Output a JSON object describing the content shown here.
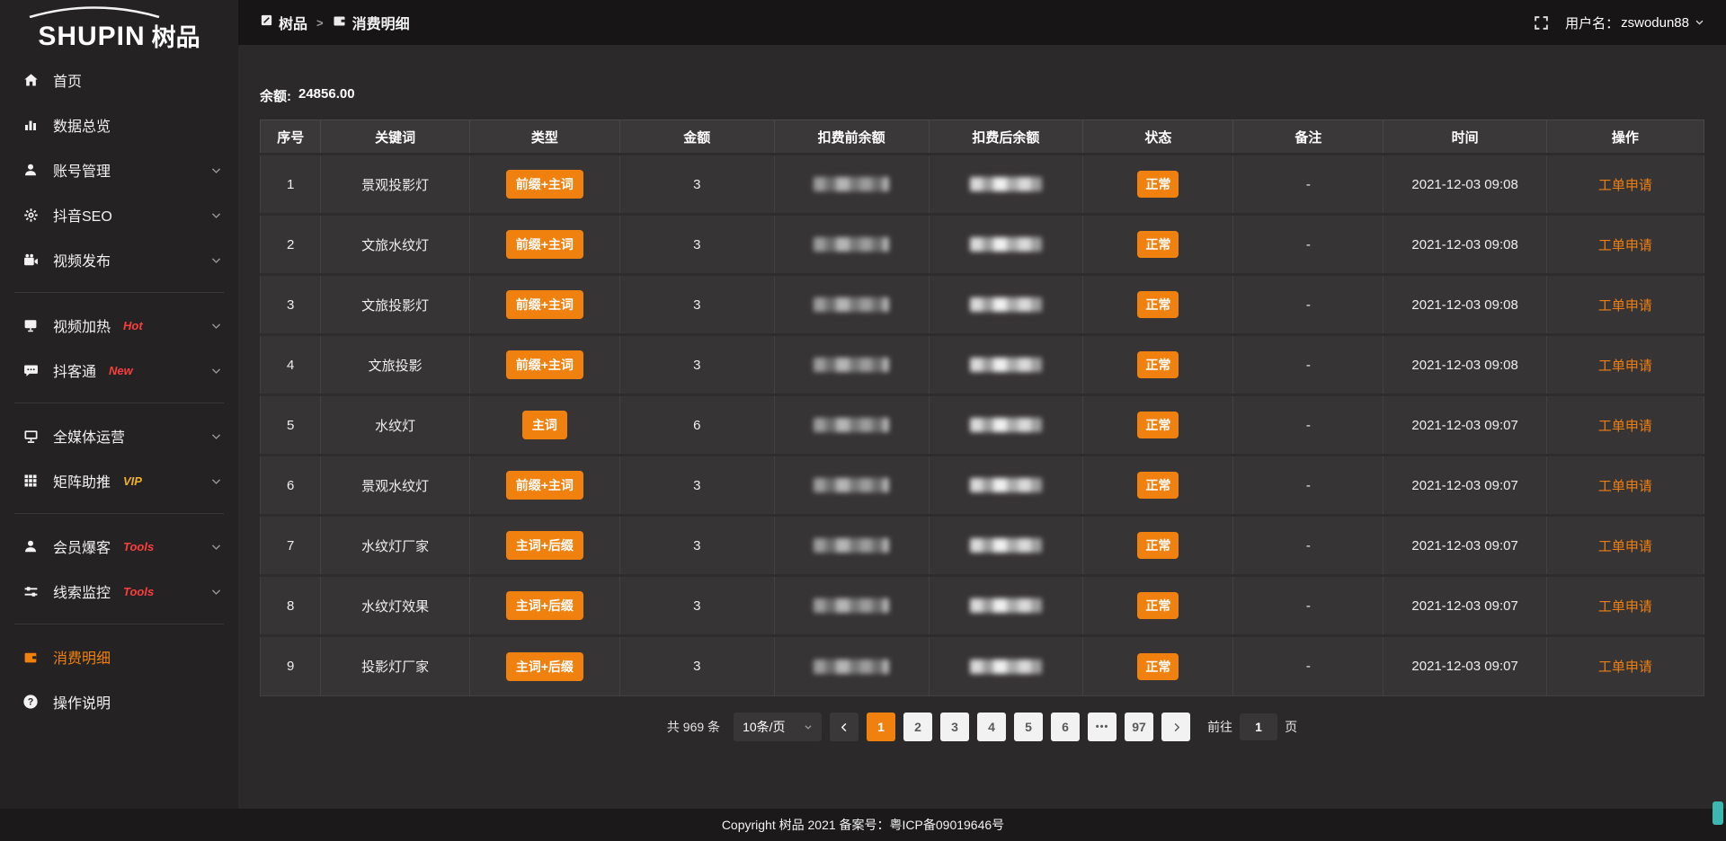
{
  "logo": {
    "text_en": "SHUPIN",
    "text_cn": "树品"
  },
  "topbar": {
    "breadcrumb": [
      {
        "label": "树品",
        "icon": "app-square-icon"
      },
      {
        "label": "消费明细",
        "icon": "wallet-icon"
      }
    ],
    "breadcrumb_separator": ">",
    "username_label": "用户名：",
    "username": "zswodun88"
  },
  "sidebar": {
    "items": [
      {
        "key": "home",
        "label": "首页",
        "icon": "home-icon"
      },
      {
        "key": "data-overview",
        "label": "数据总览",
        "icon": "bar-chart-icon"
      },
      {
        "key": "account-manage",
        "label": "账号管理",
        "icon": "user-icon",
        "chevron": true
      },
      {
        "key": "douyin-seo",
        "label": "抖音SEO",
        "icon": "gear-icon",
        "chevron": true
      },
      {
        "key": "video-publish",
        "label": "视频发布",
        "icon": "camera-icon",
        "chevron": true
      },
      {
        "divider": true
      },
      {
        "key": "video-heat",
        "label": "视频加热",
        "icon": "video-icon",
        "tag": "Hot",
        "tag_color": "#fa3e3e",
        "chevron": true
      },
      {
        "key": "douketong",
        "label": "抖客通",
        "icon": "chat-icon",
        "tag": "New",
        "tag_color": "#fa3e3e",
        "chevron": true
      },
      {
        "divider": true
      },
      {
        "key": "media-operation",
        "label": "全媒体运营",
        "icon": "monitor-icon",
        "chevron": true
      },
      {
        "key": "matrix-boost",
        "label": "矩阵助推",
        "icon": "grid-icon",
        "tag": "VIP",
        "tag_color": "#efb129",
        "chevron": true
      },
      {
        "divider": true
      },
      {
        "key": "member-baoke",
        "label": "会员爆客",
        "icon": "member-icon",
        "tag": "Tools",
        "tag_color": "#fa3e3e",
        "chevron": true
      },
      {
        "key": "clue-monitor",
        "label": "线索监控",
        "icon": "sliders-icon",
        "tag": "Tools",
        "tag_color": "#fa3e3e",
        "chevron": true
      },
      {
        "divider": true
      },
      {
        "key": "consume-detail",
        "label": "消费明细",
        "icon": "wallet-icon",
        "active": true
      },
      {
        "key": "instructions",
        "label": "操作说明",
        "icon": "question-icon"
      }
    ]
  },
  "balance": {
    "label": "余额:",
    "value": "24856.00"
  },
  "table": {
    "headers": [
      "序号",
      "关键词",
      "类型",
      "金额",
      "扣费前余额",
      "扣费后余额",
      "状态",
      "备注",
      "时间",
      "操作"
    ],
    "rows": [
      {
        "index": "1",
        "keyword": "景观投影灯",
        "type": "前缀+主词",
        "amount": "3",
        "status": "正常",
        "remark": "-",
        "time": "2021-12-03 09:08",
        "action": "工单申请"
      },
      {
        "index": "2",
        "keyword": "文旅水纹灯",
        "type": "前缀+主词",
        "amount": "3",
        "status": "正常",
        "remark": "-",
        "time": "2021-12-03 09:08",
        "action": "工单申请"
      },
      {
        "index": "3",
        "keyword": "文旅投影灯",
        "type": "前缀+主词",
        "amount": "3",
        "status": "正常",
        "remark": "-",
        "time": "2021-12-03 09:08",
        "action": "工单申请"
      },
      {
        "index": "4",
        "keyword": "文旅投影",
        "type": "前缀+主词",
        "amount": "3",
        "status": "正常",
        "remark": "-",
        "time": "2021-12-03 09:08",
        "action": "工单申请"
      },
      {
        "index": "5",
        "keyword": "水纹灯",
        "type": "主词",
        "amount": "6",
        "status": "正常",
        "remark": "-",
        "time": "2021-12-03 09:07",
        "action": "工单申请"
      },
      {
        "index": "6",
        "keyword": "景观水纹灯",
        "type": "前缀+主词",
        "amount": "3",
        "status": "正常",
        "remark": "-",
        "time": "2021-12-03 09:07",
        "action": "工单申请"
      },
      {
        "index": "7",
        "keyword": "水纹灯厂家",
        "type": "主词+后缀",
        "amount": "3",
        "status": "正常",
        "remark": "-",
        "time": "2021-12-03 09:07",
        "action": "工单申请"
      },
      {
        "index": "8",
        "keyword": "水纹灯效果",
        "type": "主词+后缀",
        "amount": "3",
        "status": "正常",
        "remark": "-",
        "time": "2021-12-03 09:07",
        "action": "工单申请"
      },
      {
        "index": "9",
        "keyword": "投影灯厂家",
        "type": "主词+后缀",
        "amount": "3",
        "status": "正常",
        "remark": "-",
        "time": "2021-12-03 09:07",
        "action": "工单申请"
      }
    ]
  },
  "pagination": {
    "total": "共 969 条",
    "page_size": "10条/页",
    "pages": [
      "1",
      "2",
      "3",
      "4",
      "5",
      "6",
      "•••",
      "97"
    ],
    "active_page": "1",
    "goto_label": "前往",
    "goto_value": "1",
    "goto_suffix": "页"
  },
  "footer": {
    "copyright": "Copyright 树品 2021 备案号：粤ICP备09019646号"
  },
  "colors": {
    "accent": "#F0810F",
    "hot_red": "#fa3e3e",
    "vip_yellow": "#efb129",
    "status_orange": "#F0810F"
  }
}
